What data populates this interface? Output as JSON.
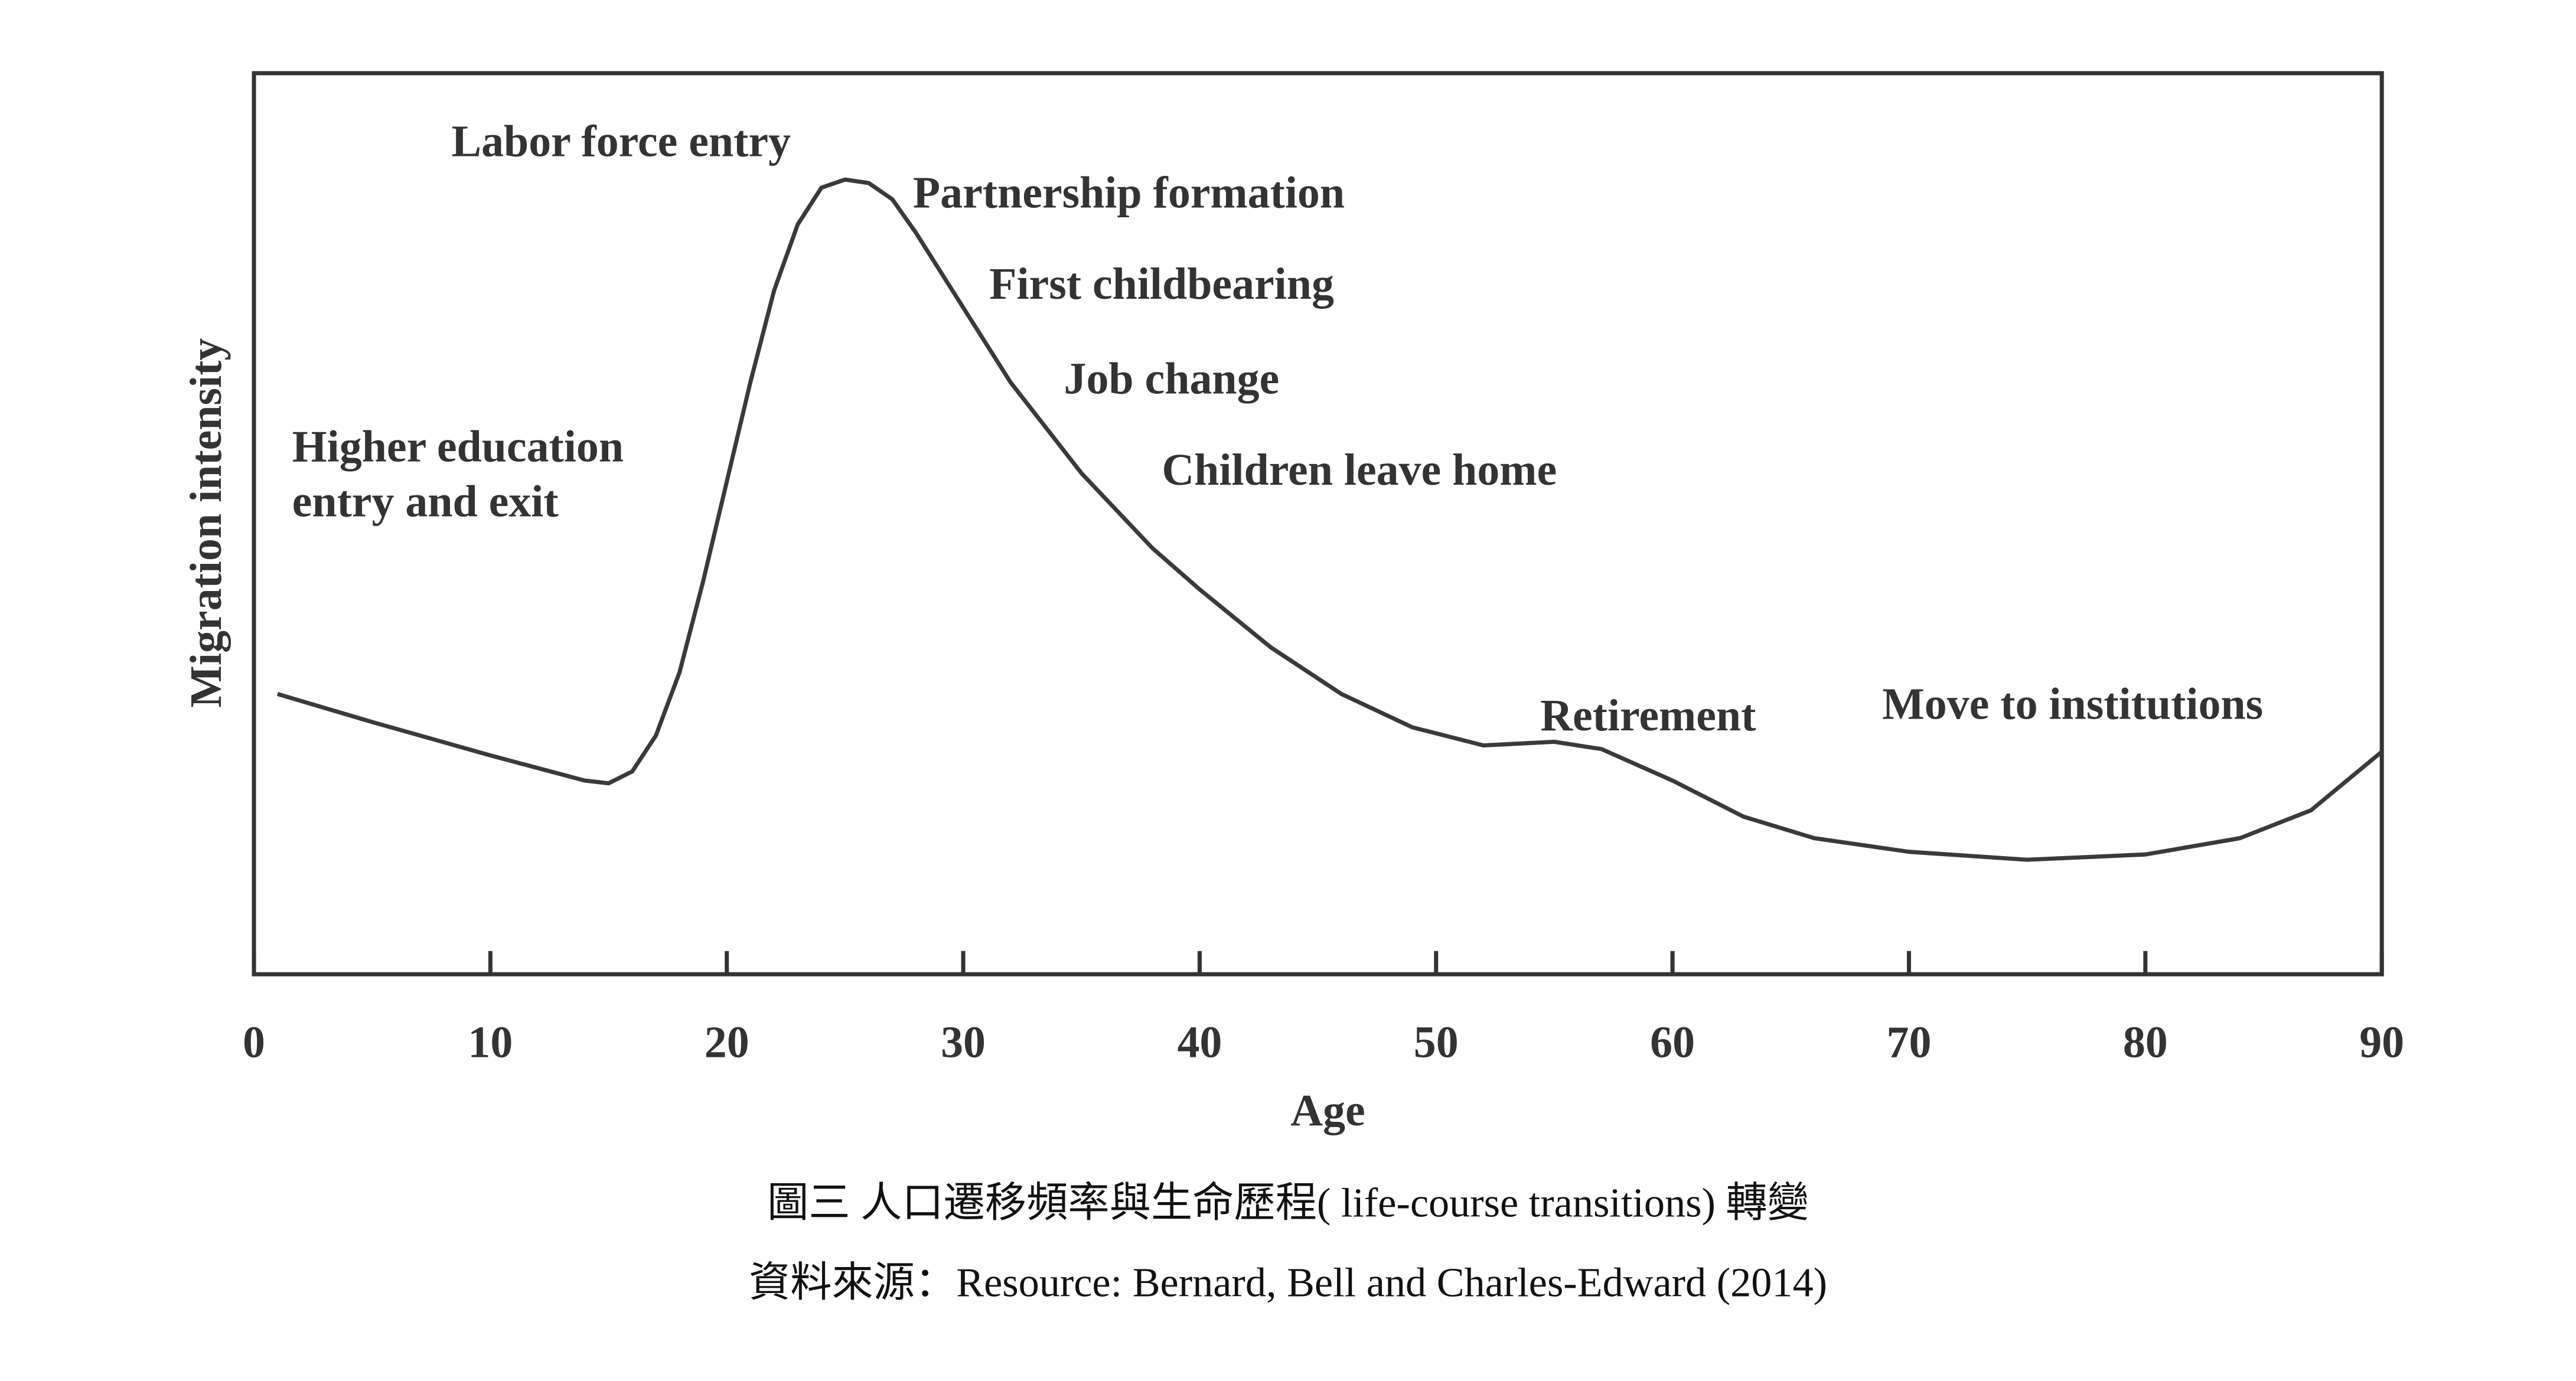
{
  "chart_data": {
    "type": "line",
    "x_label": "Age",
    "y_label": "Migration intensity",
    "x": [
      1,
      5,
      10,
      14,
      15,
      16,
      17,
      18,
      19,
      20,
      21,
      22,
      23,
      24,
      25,
      26,
      27,
      28,
      30,
      32,
      35,
      38,
      40,
      43,
      46,
      49,
      52,
      55,
      57,
      60,
      63,
      66,
      70,
      75,
      80,
      84,
      87,
      90
    ],
    "values": [
      31.1,
      28.0,
      24.3,
      21.5,
      21.2,
      22.5,
      26.5,
      33.5,
      43.6,
      54.7,
      65.7,
      75.9,
      83.2,
      87.3,
      88.2,
      87.8,
      86.0,
      82.3,
      74.0,
      65.7,
      55.6,
      47.3,
      42.7,
      36.3,
      31.1,
      27.4,
      25.4,
      25.8,
      25.0,
      21.5,
      17.5,
      15.1,
      13.6,
      12.7,
      13.3,
      15.1,
      18.2,
      24.7
    ],
    "color": "#3a3a3a",
    "xlim": [
      0,
      90
    ],
    "xticks": [
      0,
      10,
      20,
      30,
      40,
      50,
      60,
      70,
      80,
      90
    ],
    "ylim": [
      0,
      100
    ],
    "annotations": [
      "Labor force entry",
      "Partnership formation",
      "First childbearing",
      "Job change",
      "Children leave home",
      "Higher education",
      "entry and exit",
      "Retirement",
      "Move to institutions"
    ]
  },
  "caption": {
    "title": "圖三  人口遷移頻率與生命歷程( life-course transitions)  轉變",
    "source": "資料來源：Resource: Bernard, Bell and Charles-Edward (2014)"
  }
}
